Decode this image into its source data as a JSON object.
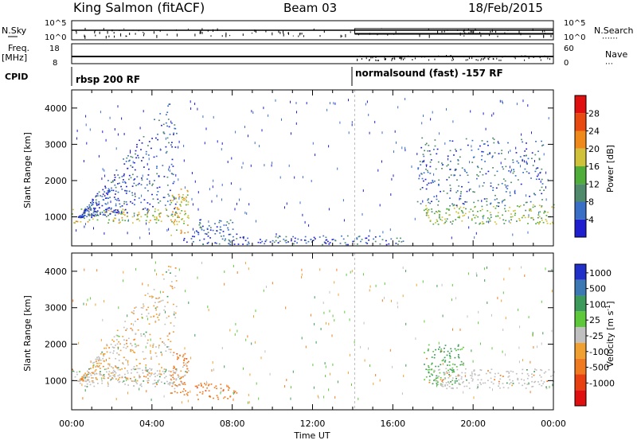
{
  "header": {
    "station": "King Salmon (fitACF)",
    "beam": "Beam 03",
    "date": "18/Feb/2015"
  },
  "strips": {
    "nsky_label": "N.Sky",
    "nsky_ticks": [
      "10^5",
      "10^0"
    ],
    "nsearch_label": "N.Search",
    "nsearch_ticks": [
      "10^5",
      "10^0"
    ],
    "freq_label": "Freq.",
    "freq_unit": "[MHz]",
    "freq_ticks": [
      "18",
      "8"
    ],
    "nave_label": "Nave",
    "nave_ticks": [
      "60",
      "0"
    ],
    "cpid_label": "CPID",
    "cpid_segments": [
      {
        "label": "rbsp 200 RF",
        "start_hour": 0
      },
      {
        "label": "normalsound (fast) -157 RF",
        "start_hour": 14.1
      }
    ]
  },
  "chart_data": [
    {
      "type": "heatmap",
      "quantity": "Power",
      "xlabel": "Time UT",
      "ylabel": "Slant Range [km]",
      "x_range_hours": [
        0,
        24
      ],
      "xticks": [
        "00:00",
        "04:00",
        "08:00",
        "12:00",
        "16:00",
        "20:00",
        "00:00"
      ],
      "ylim": [
        200,
        4500
      ],
      "yticks": [
        1000,
        2000,
        3000,
        4000
      ],
      "colorbar": {
        "label": "Power [dB]",
        "ticks": [
          4,
          8,
          12,
          16,
          20,
          24,
          28
        ],
        "range": [
          0,
          30
        ],
        "colors": [
          "#1f1fd0",
          "#3a6fc8",
          "#4f8a6a",
          "#4fae3a",
          "#cfc23a",
          "#ef8a1a",
          "#e84a12",
          "#e01010"
        ]
      },
      "features": [
        {
          "name": "near range echo band",
          "time_start_hours": 0,
          "time_end_hours": 5.8,
          "range_km": [
            850,
            1250
          ],
          "power_db": 16
        },
        {
          "name": "slanted range streaks",
          "time_start_hours": 0.3,
          "time_end_hours": 5.2,
          "range_km": [
            1000,
            4200
          ],
          "power_db": 4
        },
        {
          "name": "intense echo feature",
          "time_start_hours": 4.9,
          "time_end_hours": 5.8,
          "range_km": [
            500,
            1800
          ],
          "power_db": 18
        },
        {
          "name": "mid range patches",
          "time_start_hours": 6.1,
          "time_end_hours": 8.2,
          "range_km": [
            500,
            950
          ],
          "power_db": 4
        },
        {
          "name": "low range ground scatter",
          "time_start_hours": 5.5,
          "time_end_hours": 16.5,
          "range_km": [
            250,
            500
          ],
          "power_db": 4
        },
        {
          "name": "evening echo band",
          "time_start_hours": 17.5,
          "time_end_hours": 24,
          "range_km": [
            800,
            1350
          ],
          "power_db": 14
        },
        {
          "name": "evening higher range echoes",
          "time_start_hours": 17.2,
          "time_end_hours": 23.5,
          "range_km": [
            1300,
            3200
          ],
          "power_db": 6
        }
      ]
    },
    {
      "type": "heatmap",
      "quantity": "Velocity",
      "xlabel": "Time UT",
      "ylabel": "Slant Range [km]",
      "x_range_hours": [
        0,
        24
      ],
      "xticks": [
        "00:00",
        "04:00",
        "08:00",
        "12:00",
        "16:00",
        "20:00",
        "00:00"
      ],
      "ylim": [
        200,
        4500
      ],
      "yticks": [
        1000,
        2000,
        3000,
        4000
      ],
      "colorbar": {
        "label": "Velocity [m s^-1]",
        "ticks": [
          "1000",
          "500",
          "100",
          "25",
          "-25",
          "-100",
          "-500",
          "-1000"
        ],
        "colors": [
          "#2030c8",
          "#3c78b4",
          "#3c9a5a",
          "#5cc83a",
          "#c0c0c0",
          "#f0a030",
          "#f07a20",
          "#e84010",
          "#e01010"
        ]
      },
      "features": [
        {
          "name": "grey low velocity band",
          "time_start_hours": 0,
          "time_end_hours": 5.8,
          "range_km": [
            850,
            1350
          ],
          "velocity_ms": 0
        },
        {
          "name": "streaks with mixed velocity",
          "time_start_hours": 0.3,
          "time_end_hours": 5.2,
          "range_km": [
            1000,
            4200
          ],
          "velocity_ms": -25
        },
        {
          "name": "orange negative velocity feature",
          "time_start_hours": 4.9,
          "time_end_hours": 5.8,
          "range_km": [
            500,
            1800
          ],
          "velocity_ms": -300
        },
        {
          "name": "orange mid patches",
          "time_start_hours": 6.1,
          "time_end_hours": 8.2,
          "range_km": [
            500,
            950
          ],
          "velocity_ms": -300
        },
        {
          "name": "green evening band",
          "time_start_hours": 17.5,
          "time_end_hours": 19.5,
          "range_km": [
            900,
            2000
          ],
          "velocity_ms": 100
        },
        {
          "name": "grey evening band",
          "time_start_hours": 18,
          "time_end_hours": 24,
          "range_km": [
            800,
            1350
          ],
          "velocity_ms": 0
        }
      ]
    }
  ]
}
